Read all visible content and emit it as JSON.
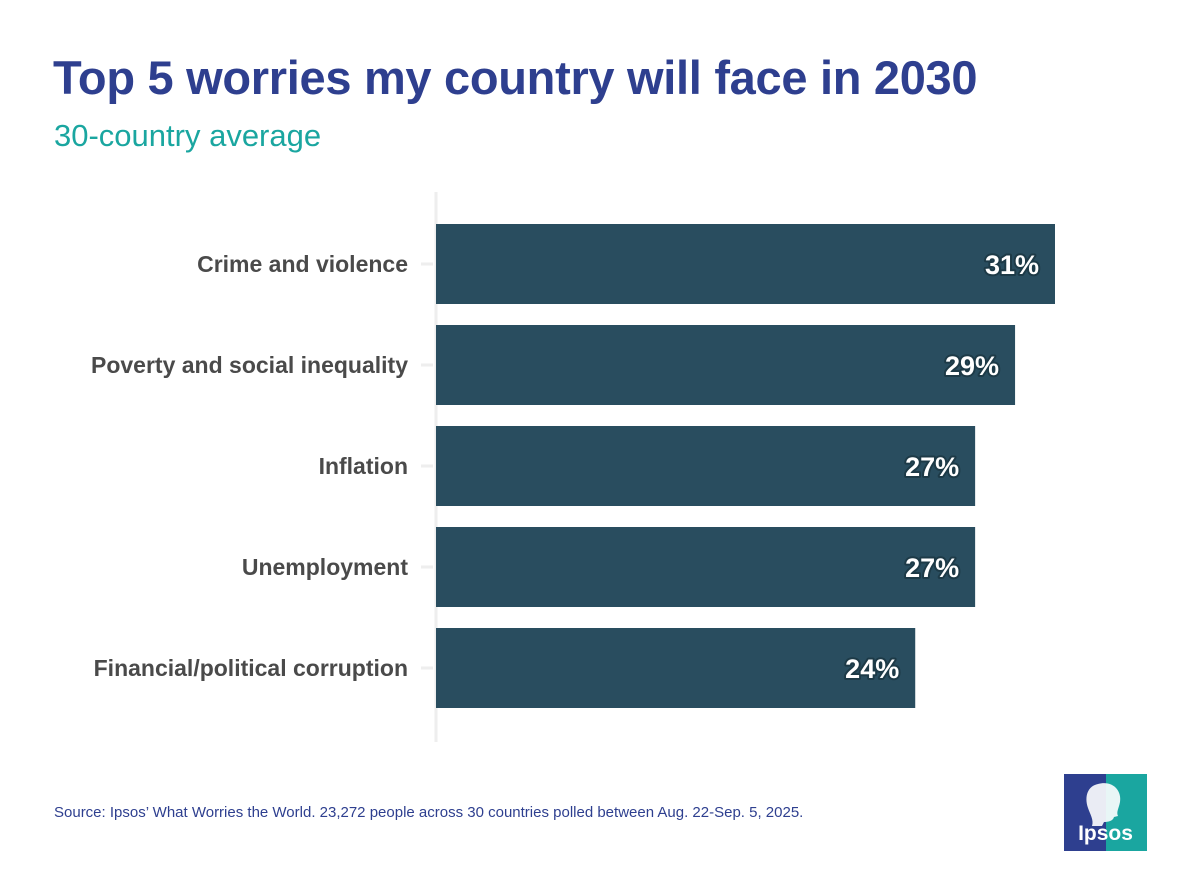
{
  "header": {
    "title": "Top 5 worries my country will face in 2030",
    "subtitle": "30-country average"
  },
  "footer": {
    "source": "Source: Ipsos’ What Worries the World. 23,272 people across 30 countries polled between Aug. 22-Sep. 5, 2025."
  },
  "logo": {
    "text": "Ipsos",
    "icon": "ipsos-head-icon",
    "colors": {
      "left": "#2e3f8f",
      "right": "#1aa6a0"
    }
  },
  "chart_data": {
    "type": "bar",
    "orientation": "horizontal",
    "title": "Top 5 worries my country will face in 2030",
    "subtitle": "30-country average",
    "categories": [
      "Crime and violence",
      "Poverty and social inequality",
      "Inflation",
      "Unemployment",
      "Financial/political corruption"
    ],
    "values": [
      31,
      29,
      27,
      27,
      24
    ],
    "value_labels": [
      "31%",
      "29%",
      "27%",
      "27%",
      "24%"
    ],
    "unit": "%",
    "xlim": [
      0,
      31
    ],
    "grid": false,
    "legend": "none",
    "bar_color": "#294d5f",
    "axis_color": "#eeeeee"
  }
}
